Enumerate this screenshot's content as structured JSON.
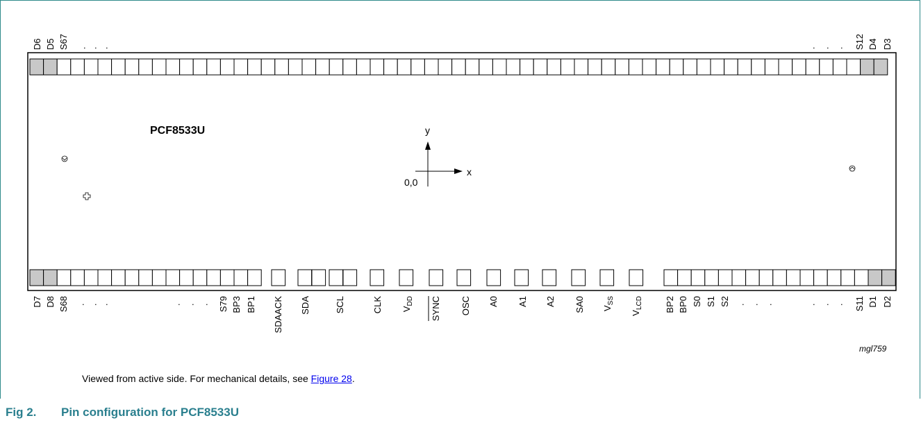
{
  "chip_name": "PCF8533U",
  "axis": {
    "x": "x",
    "y": "y",
    "origin": "0,0"
  },
  "watermark": "mgl759",
  "caption": {
    "text": "Viewed from active side. For mechanical details, see ",
    "link": "Figure 28",
    "tail": "."
  },
  "figure": {
    "number": "Fig 2.",
    "title": "Pin configuration for PCF8533U"
  },
  "top_labels": {
    "left": [
      "D6",
      "D5",
      "S67"
    ],
    "right": [
      "S12",
      "D4",
      "D3"
    ],
    "dot": "."
  },
  "bottom_labels": {
    "left": [
      "D7",
      "D8",
      "S68"
    ],
    "mid_left": [
      "S79",
      "BP3",
      "BP1"
    ],
    "pads": [
      "SDAACK",
      "SDA",
      "SCL",
      "CLK",
      "VDD",
      "SYNC",
      "OSC",
      "A0",
      "A1",
      "A2",
      "SA0",
      "VSS",
      "VLCD"
    ],
    "mid_right": [
      "BP2",
      "BP0",
      "S0",
      "S1",
      "S2"
    ],
    "right": [
      "S11",
      "D1",
      "D2"
    ],
    "dot": "."
  },
  "sub": {
    "DD": "DD",
    "SS": "SS",
    "LCD": "LCD",
    "V": "V"
  }
}
